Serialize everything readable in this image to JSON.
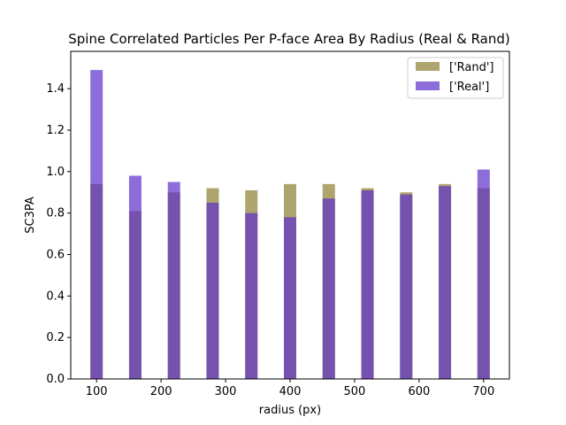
{
  "chart_data": {
    "type": "bar",
    "title": "Spine Correlated Particles Per P-face Area By Radius (Real & Rand)",
    "xlabel": "radius (px)",
    "ylabel": "SC3PA",
    "x": [
      100,
      160,
      220,
      280,
      340,
      400,
      460,
      520,
      580,
      640,
      700
    ],
    "xlim": [
      60,
      740
    ],
    "ylim": [
      0,
      1.58
    ],
    "xticks": [
      "100",
      "200",
      "300",
      "400",
      "500",
      "600",
      "700"
    ],
    "yticks": [
      "0.0",
      "0.2",
      "0.4",
      "0.6",
      "0.8",
      "1.0",
      "1.2",
      "1.4"
    ],
    "series": [
      {
        "name": "['Rand']",
        "color": "#8b7f30",
        "opacity": 0.7,
        "values": [
          0.94,
          0.81,
          0.9,
          0.92,
          0.91,
          0.94,
          0.94,
          0.92,
          0.9,
          0.94,
          0.92
        ]
      },
      {
        "name": "['Real']",
        "color": "#5b2fc9",
        "opacity": 0.7,
        "values": [
          1.49,
          0.98,
          0.95,
          0.85,
          0.8,
          0.78,
          0.87,
          0.91,
          0.89,
          0.93,
          1.01
        ]
      }
    ],
    "legend_position": "top-right",
    "grid": false
  }
}
